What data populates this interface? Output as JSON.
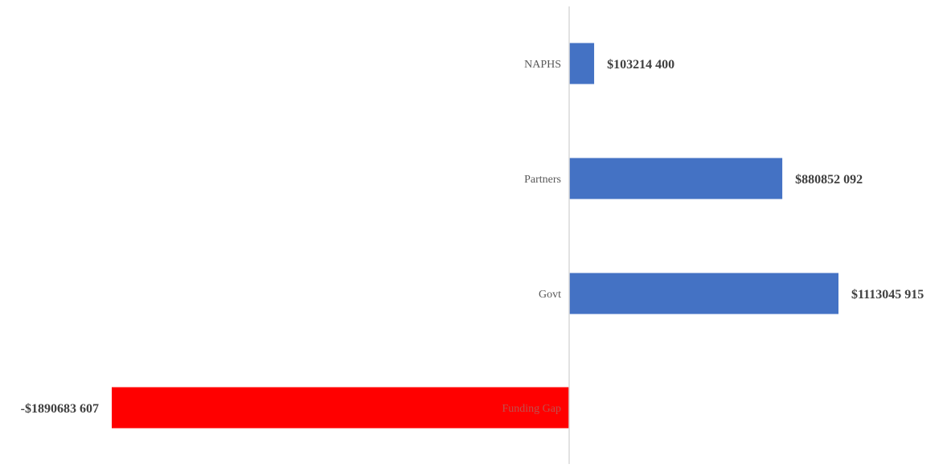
{
  "chart_data": {
    "type": "bar",
    "orientation": "horizontal",
    "title": "",
    "xlabel": "",
    "ylabel": "",
    "grid": false,
    "legend": "none",
    "categories": [
      "NAPHS",
      "Partners",
      "Govt",
      "Funding Gap"
    ],
    "values": [
      103214400,
      880852092,
      1113045915,
      -1890683607
    ],
    "data_labels": [
      "$103214 400",
      "$880852 092",
      "$1113045 915",
      "-$1890683 607"
    ],
    "colors": [
      "#4472C4",
      "#4472C4",
      "#4472C4",
      "#FF0000"
    ],
    "xlim": [
      -1890683607,
      1113045915
    ]
  }
}
